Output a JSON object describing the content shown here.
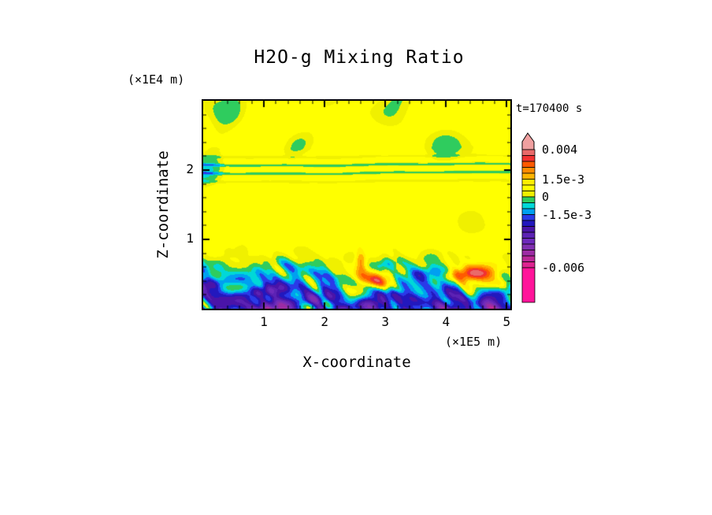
{
  "title": "H2O-g Mixing Ratio",
  "time_label": "t=170400 s",
  "axes": {
    "x_label": "X-coordinate",
    "x_unit": "(×1E5 m)",
    "x_ticks": [
      "1",
      "2",
      "3",
      "4",
      "5"
    ],
    "y_label": "Z-coordinate",
    "y_unit": "(×1E4 m)",
    "y_ticks": [
      "1",
      "2"
    ]
  },
  "chart_data": {
    "type": "heatmap",
    "subtype": "filled-contour",
    "title": "H2O-g Mixing Ratio",
    "xlabel": "X-coordinate (×1E5 m)",
    "ylabel": "Z-coordinate (×1E4 m)",
    "time_annotation": "t=170400 s",
    "x_range": [
      0,
      5.06
    ],
    "y_range": [
      0,
      3.0
    ],
    "x_tick_values": [
      1,
      2,
      3,
      4,
      5
    ],
    "y_tick_values": [
      1,
      2
    ],
    "contour_interval": 0.0005,
    "levels": [
      0.004,
      0.0035,
      0.003,
      0.0025,
      0.002,
      0.0015,
      0.001,
      0.0005,
      0,
      -0.0005,
      -0.001,
      -0.0015,
      -0.002,
      -0.0025,
      -0.003,
      -0.0035,
      -0.004,
      -0.0045,
      -0.005,
      -0.0055,
      -0.006
    ],
    "labeled_levels": [
      0.004,
      0.0015,
      0,
      -0.0015,
      -0.006
    ],
    "colorbar": {
      "arrow_color": "#F0A0A0",
      "segment_colors": [
        "#E96A6A",
        "#F23232",
        "#FF5A00",
        "#FF8C00",
        "#FFB400",
        "#FFEE00",
        "#FFFF00",
        "#F0F000",
        "#2FCC5E",
        "#00D8D8",
        "#00A0F0",
        "#2A3AE8",
        "#2218BE",
        "#4A14A8",
        "#5C22B4",
        "#6E2ABC",
        "#8030B0",
        "#9C2CA4",
        "#BC2898",
        "#DC2490"
      ],
      "below_min_color": "#FF149A",
      "labels": [
        {
          "text": "0.004",
          "index": 0
        },
        {
          "text": "1.5e-3",
          "index": 5
        },
        {
          "text": "0",
          "index": 8
        },
        {
          "text": "-1.5e-3",
          "index": 11
        },
        {
          "text": "-0.006",
          "index": 20
        }
      ]
    },
    "structure": {
      "background_value": 0.00075,
      "interface_z": 0.74,
      "stripe_band_z": 2.02,
      "upper_blob_zone_z": [
        2.2,
        3.0
      ],
      "hotspots": [
        {
          "x": 2.82,
          "z": 0.4,
          "sx": 0.3,
          "sz": 0.17,
          "amp": 0.0048
        },
        {
          "x": 4.52,
          "z": 0.5,
          "sx": 0.42,
          "sz": 0.2,
          "amp": 0.0052
        },
        {
          "x": 2.6,
          "z": 0.75,
          "sx": 0.1,
          "sz": 0.3,
          "amp": 0.0025
        }
      ]
    }
  }
}
